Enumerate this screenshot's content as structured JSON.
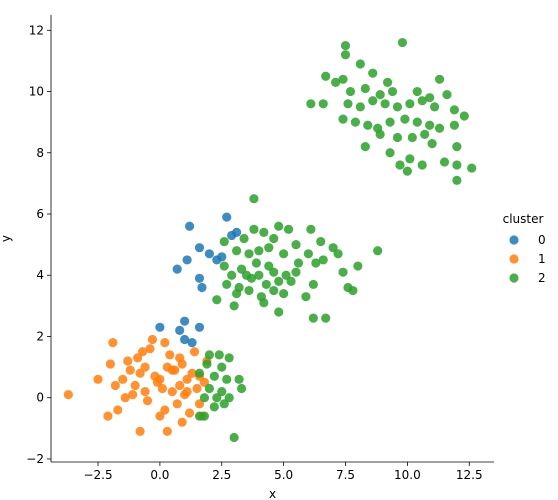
{
  "chart_data": {
    "type": "scatter",
    "title": "",
    "xlabel": "x",
    "ylabel": "y",
    "xlim": [
      -4.4,
      13.5
    ],
    "ylim": [
      -2.1,
      12.5
    ],
    "xticks": [
      -2.5,
      0.0,
      2.5,
      5.0,
      7.5,
      10.0,
      12.5
    ],
    "xtick_labels": [
      "−2.5",
      "0.0",
      "2.5",
      "5.0",
      "7.5",
      "10.0",
      "12.5"
    ],
    "yticks": [
      -2,
      0,
      2,
      4,
      6,
      8,
      10,
      12
    ],
    "ytick_labels": [
      "−2",
      "0",
      "2",
      "4",
      "6",
      "8",
      "10",
      "12"
    ],
    "grid": false,
    "legend": {
      "title": "cluster",
      "placement": "right"
    },
    "series": [
      {
        "name": "0",
        "color": "#1f77b4",
        "points": [
          [
            2.7,
            5.9
          ],
          [
            2.9,
            5.3
          ],
          [
            3.1,
            5.4
          ],
          [
            1.2,
            5.6
          ],
          [
            1.6,
            4.9
          ],
          [
            2.0,
            4.7
          ],
          [
            2.3,
            4.5
          ],
          [
            2.5,
            4.6
          ],
          [
            0.7,
            4.2
          ],
          [
            1.1,
            4.5
          ],
          [
            1.6,
            3.9
          ],
          [
            1.7,
            3.6
          ],
          [
            1.0,
            2.5
          ],
          [
            0.0,
            2.3
          ],
          [
            0.8,
            2.2
          ],
          [
            1.6,
            2.3
          ],
          [
            1.0,
            1.9
          ],
          [
            1.3,
            1.8
          ]
        ]
      },
      {
        "name": "1",
        "color": "#ff7f0e",
        "points": [
          [
            -3.7,
            0.1
          ],
          [
            -2.5,
            0.6
          ],
          [
            -2.1,
            -0.6
          ],
          [
            -1.9,
            1.8
          ],
          [
            -2.0,
            1.1
          ],
          [
            -1.8,
            0.4
          ],
          [
            -1.7,
            -0.4
          ],
          [
            -1.4,
            0.0
          ],
          [
            -1.3,
            1.2
          ],
          [
            -1.2,
            0.9
          ],
          [
            -1.0,
            0.4
          ],
          [
            -0.9,
            1.3
          ],
          [
            -0.8,
            0.8
          ],
          [
            -0.7,
            1.5
          ],
          [
            -0.6,
            0.2
          ],
          [
            -0.5,
            -0.1
          ],
          [
            -0.3,
            1.9
          ],
          [
            -0.2,
            0.7
          ],
          [
            -0.1,
            0.5
          ],
          [
            0.0,
            0.6
          ],
          [
            0.1,
            0.3
          ],
          [
            0.2,
            -0.4
          ],
          [
            0.3,
            1.0
          ],
          [
            0.4,
            1.4
          ],
          [
            0.5,
            0.2
          ],
          [
            0.6,
            0.9
          ],
          [
            0.7,
            -0.2
          ],
          [
            0.8,
            0.4
          ],
          [
            0.9,
            1.1
          ],
          [
            1.0,
            0.1
          ],
          [
            1.1,
            0.6
          ],
          [
            1.2,
            -0.5
          ],
          [
            1.3,
            0.8
          ],
          [
            1.4,
            1.5
          ],
          [
            1.5,
            0.3
          ],
          [
            1.6,
            0.7
          ],
          [
            1.7,
            -0.6
          ],
          [
            1.8,
            0.5
          ],
          [
            1.9,
            1.2
          ],
          [
            0.0,
            -0.6
          ],
          [
            -0.8,
            -1.1
          ],
          [
            0.3,
            -1.1
          ],
          [
            0.9,
            -0.8
          ],
          [
            -1.5,
            0.6
          ],
          [
            -0.4,
            1.6
          ],
          [
            0.5,
            0.9
          ],
          [
            1.1,
            0.2
          ],
          [
            -1.1,
            0.1
          ],
          [
            0.2,
            1.8
          ],
          [
            0.8,
            1.3
          ],
          [
            1.6,
            -0.2
          ],
          [
            -0.6,
            1.0
          ]
        ]
      },
      {
        "name": "2",
        "color": "#2ca02c",
        "points": [
          [
            7.5,
            11.5
          ],
          [
            9.8,
            11.6
          ],
          [
            7.5,
            11.2
          ],
          [
            8.1,
            10.9
          ],
          [
            8.6,
            10.6
          ],
          [
            6.7,
            10.5
          ],
          [
            7.1,
            10.3
          ],
          [
            7.4,
            10.4
          ],
          [
            9.2,
            10.3
          ],
          [
            11.3,
            10.4
          ],
          [
            7.7,
            10.0
          ],
          [
            8.3,
            10.1
          ],
          [
            8.9,
            9.9
          ],
          [
            9.4,
            10.0
          ],
          [
            10.4,
            10.0
          ],
          [
            10.9,
            9.8
          ],
          [
            11.6,
            9.9
          ],
          [
            6.1,
            9.6
          ],
          [
            6.6,
            9.6
          ],
          [
            7.6,
            9.6
          ],
          [
            8.1,
            9.5
          ],
          [
            8.6,
            9.7
          ],
          [
            9.1,
            9.6
          ],
          [
            9.6,
            9.5
          ],
          [
            10.1,
            9.6
          ],
          [
            10.6,
            9.7
          ],
          [
            11.1,
            9.5
          ],
          [
            11.9,
            9.4
          ],
          [
            12.3,
            9.2
          ],
          [
            7.4,
            9.1
          ],
          [
            7.9,
            9.0
          ],
          [
            8.4,
            8.9
          ],
          [
            8.8,
            8.8
          ],
          [
            9.3,
            9.0
          ],
          [
            9.9,
            9.1
          ],
          [
            10.4,
            9.0
          ],
          [
            10.9,
            8.9
          ],
          [
            11.3,
            8.8
          ],
          [
            11.9,
            8.9
          ],
          [
            8.9,
            8.6
          ],
          [
            9.6,
            8.5
          ],
          [
            10.2,
            8.5
          ],
          [
            10.7,
            8.6
          ],
          [
            11.0,
            8.3
          ],
          [
            12.0,
            8.2
          ],
          [
            8.3,
            8.2
          ],
          [
            9.3,
            8.0
          ],
          [
            10.1,
            7.8
          ],
          [
            10.6,
            7.6
          ],
          [
            9.7,
            7.6
          ],
          [
            10.0,
            7.4
          ],
          [
            11.5,
            7.7
          ],
          [
            12.0,
            7.6
          ],
          [
            12.6,
            7.5
          ],
          [
            12.0,
            7.1
          ],
          [
            3.8,
            6.5
          ],
          [
            2.6,
            5.1
          ],
          [
            3.4,
            5.2
          ],
          [
            3.8,
            5.5
          ],
          [
            4.2,
            5.4
          ],
          [
            4.8,
            5.6
          ],
          [
            5.2,
            5.5
          ],
          [
            6.1,
            5.5
          ],
          [
            4.6,
            5.2
          ],
          [
            5.5,
            5.0
          ],
          [
            6.5,
            5.1
          ],
          [
            7.0,
            4.9
          ],
          [
            3.1,
            4.8
          ],
          [
            3.6,
            4.7
          ],
          [
            4.0,
            4.8
          ],
          [
            4.4,
            4.9
          ],
          [
            5.0,
            4.7
          ],
          [
            6.0,
            4.7
          ],
          [
            7.2,
            4.7
          ],
          [
            8.8,
            4.8
          ],
          [
            2.6,
            4.3
          ],
          [
            3.3,
            4.2
          ],
          [
            3.9,
            4.4
          ],
          [
            4.4,
            4.3
          ],
          [
            5.6,
            4.4
          ],
          [
            6.3,
            4.4
          ],
          [
            6.6,
            4.5
          ],
          [
            8.0,
            4.3
          ],
          [
            2.9,
            4.0
          ],
          [
            3.5,
            4.0
          ],
          [
            4.0,
            4.0
          ],
          [
            4.6,
            4.1
          ],
          [
            5.1,
            4.0
          ],
          [
            5.5,
            4.1
          ],
          [
            7.4,
            4.1
          ],
          [
            2.7,
            3.7
          ],
          [
            3.2,
            3.6
          ],
          [
            3.7,
            3.9
          ],
          [
            4.3,
            3.7
          ],
          [
            4.8,
            3.8
          ],
          [
            5.3,
            3.8
          ],
          [
            6.2,
            3.7
          ],
          [
            7.6,
            3.6
          ],
          [
            3.1,
            3.4
          ],
          [
            3.6,
            3.5
          ],
          [
            4.1,
            3.3
          ],
          [
            4.6,
            3.5
          ],
          [
            5.0,
            3.4
          ],
          [
            5.9,
            3.3
          ],
          [
            7.8,
            3.5
          ],
          [
            2.3,
            3.2
          ],
          [
            3.0,
            3.0
          ],
          [
            4.2,
            3.1
          ],
          [
            4.8,
            2.8
          ],
          [
            6.2,
            2.6
          ],
          [
            6.7,
            2.6
          ],
          [
            2.0,
            1.4
          ],
          [
            2.4,
            1.4
          ],
          [
            2.8,
            1.3
          ],
          [
            1.9,
            1.1
          ],
          [
            2.5,
            1.0
          ],
          [
            1.6,
            0.8
          ],
          [
            2.2,
            0.7
          ],
          [
            2.7,
            0.6
          ],
          [
            3.2,
            0.6
          ],
          [
            2.0,
            0.3
          ],
          [
            2.5,
            0.2
          ],
          [
            3.3,
            0.3
          ],
          [
            1.8,
            0.0
          ],
          [
            2.3,
            0.0
          ],
          [
            2.8,
            0.0
          ],
          [
            2.2,
            -0.3
          ],
          [
            2.6,
            -0.2
          ],
          [
            1.6,
            -0.6
          ],
          [
            1.8,
            -0.6
          ],
          [
            3.0,
            -1.3
          ]
        ]
      }
    ]
  }
}
